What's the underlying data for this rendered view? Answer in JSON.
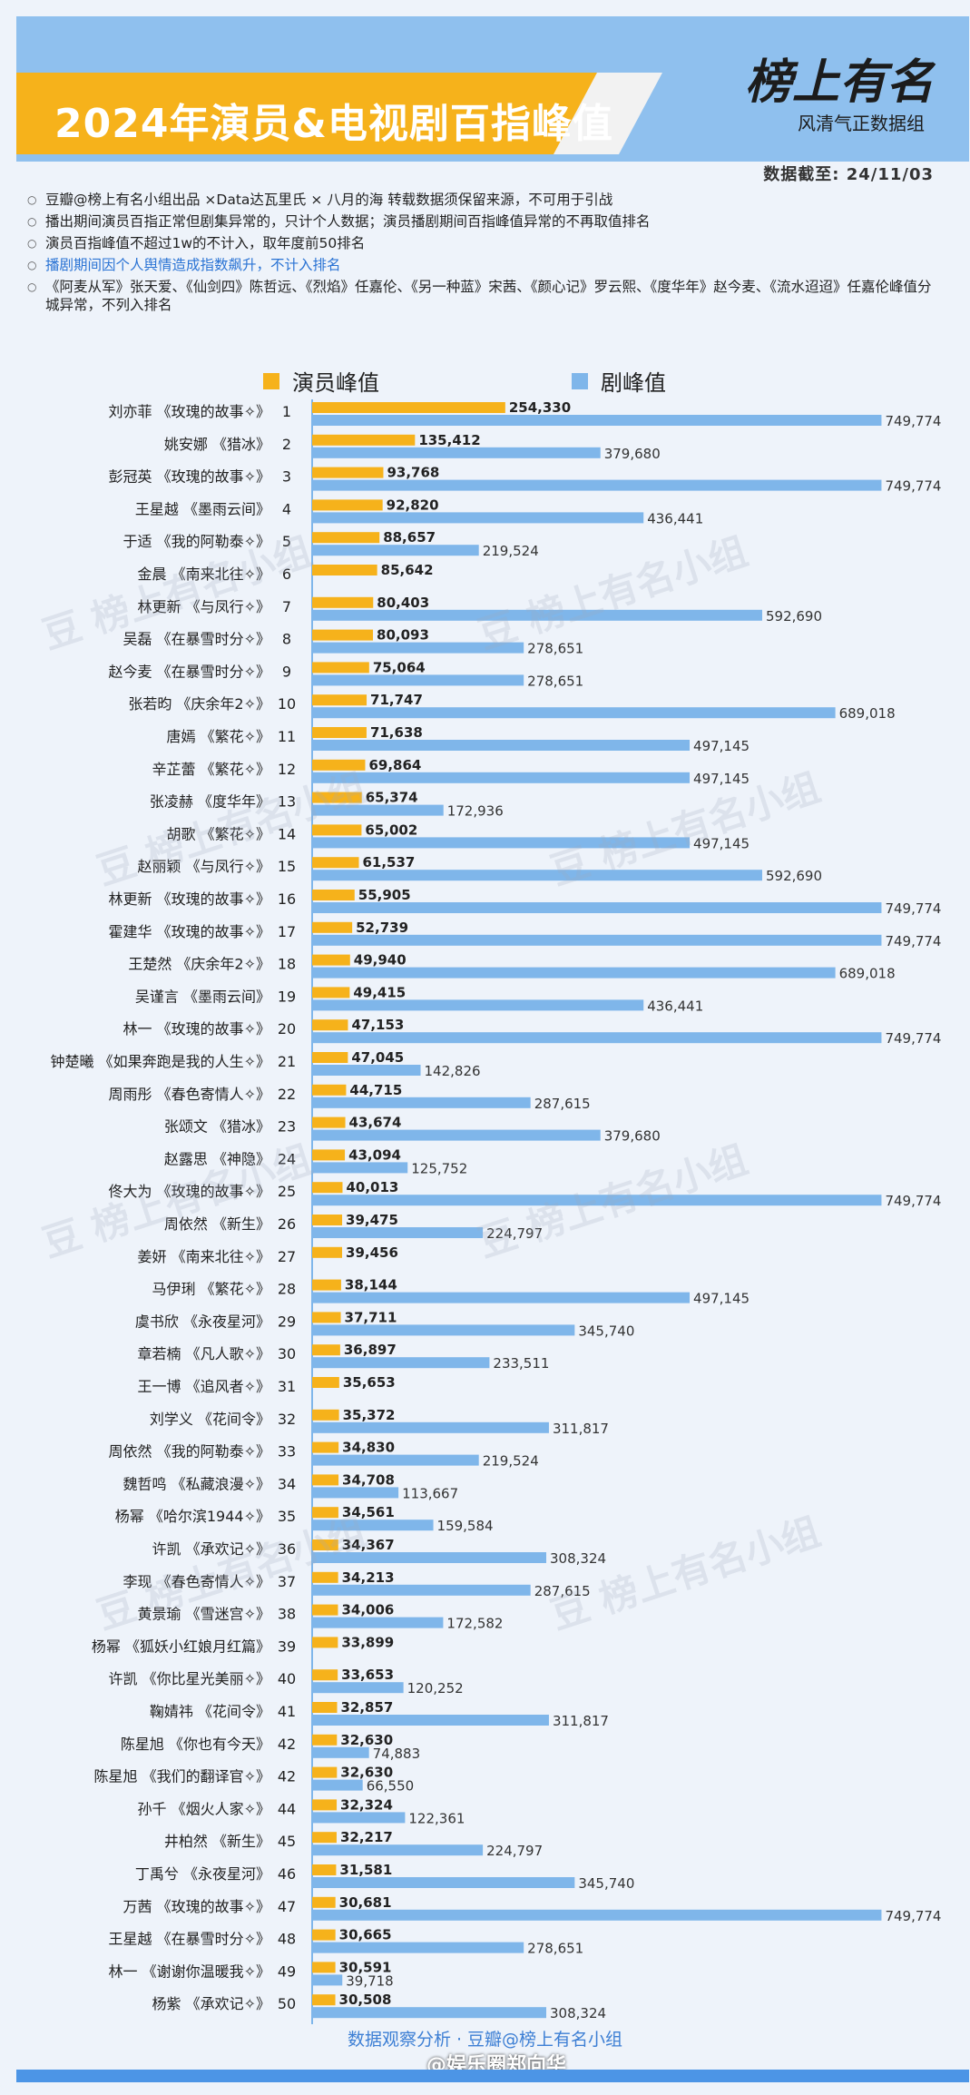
{
  "header": {
    "title": "2024年演员&电视剧百指峰值",
    "logo_text": "榜上有名",
    "logo_sub": "风清气正数据组",
    "date_line": "数据截至: 24/11/03"
  },
  "notes": [
    {
      "text": "豆瓣@榜上有名小组出品 ×Data达瓦里氏 × 八月的海 转载数据须保留来源，不可用于引战",
      "highlight": false
    },
    {
      "text": "播出期间演员百指正常但剧集异常的，只计个人数据；演员播剧期间百指峰值异常的不再取值排名",
      "highlight": false
    },
    {
      "text": "演员百指峰值不超过1w的不计入，取年度前50排名",
      "highlight": false
    },
    {
      "text": "播剧期间因个人舆情造成指数飙升，不计入排名",
      "highlight": true
    },
    {
      "text": "《阿麦从军》张天爱、《仙剑四》陈哲远、《烈焰》任嘉伦、《另一种蓝》宋茜、《颜心记》罗云熙、《度华年》赵今麦、《流水迢迢》任嘉伦峰值分城异常，不列入排名",
      "highlight": false
    }
  ],
  "watermark_text": "豆 榜上有名小组",
  "footer_text": "数据观察分析 · 豆瓣@榜上有名小组",
  "credit_text": "@娱乐圈郑向华",
  "colors": {
    "actor_bar": "#f6b21b",
    "drama_bar": "#7fb6ea",
    "header_blue": "#8fc0ee",
    "header_orange": "#f6b21b"
  },
  "chart_data": {
    "type": "bar",
    "orientation": "horizontal",
    "series": [
      {
        "name": "演员峰值",
        "key": "actor"
      },
      {
        "name": "剧峰值",
        "key": "drama"
      }
    ],
    "xlim": [
      0,
      760000
    ],
    "grid": false,
    "legend_placement": "top",
    "rows": [
      {
        "label": "刘亦菲 《玫瑰的故事✧》",
        "rank": "1",
        "actor": 254330,
        "drama": 749774
      },
      {
        "label": "姚安娜 《猎冰》",
        "rank": "2",
        "actor": 135412,
        "drama": 379680
      },
      {
        "label": "彭冠英 《玫瑰的故事✧》",
        "rank": "3",
        "actor": 93768,
        "drama": 749774
      },
      {
        "label": "王星越 《墨雨云间》",
        "rank": "4",
        "actor": 92820,
        "drama": 436441
      },
      {
        "label": "于适 《我的阿勒泰✧》",
        "rank": "5",
        "actor": 88657,
        "drama": 219524
      },
      {
        "label": "金晨 《南来北往✧》",
        "rank": "6",
        "actor": 85642,
        "drama": null
      },
      {
        "label": "林更新 《与凤行✧》",
        "rank": "7",
        "actor": 80403,
        "drama": 592690
      },
      {
        "label": "吴磊 《在暴雪时分✧》",
        "rank": "8",
        "actor": 80093,
        "drama": 278651
      },
      {
        "label": "赵今麦 《在暴雪时分✧》",
        "rank": "9",
        "actor": 75064,
        "drama": 278651
      },
      {
        "label": "张若昀 《庆余年2✧》",
        "rank": "10",
        "actor": 71747,
        "drama": 689018
      },
      {
        "label": "唐嫣 《繁花✧》",
        "rank": "11",
        "actor": 71638,
        "drama": 497145
      },
      {
        "label": "辛芷蕾 《繁花✧》",
        "rank": "12",
        "actor": 69864,
        "drama": 497145
      },
      {
        "label": "张凌赫 《度华年》",
        "rank": "13",
        "actor": 65374,
        "drama": 172936
      },
      {
        "label": "胡歌 《繁花✧》",
        "rank": "14",
        "actor": 65002,
        "drama": 497145
      },
      {
        "label": "赵丽颖 《与凤行✧》",
        "rank": "15",
        "actor": 61537,
        "drama": 592690
      },
      {
        "label": "林更新 《玫瑰的故事✧》",
        "rank": "16",
        "actor": 55905,
        "drama": 749774
      },
      {
        "label": "霍建华 《玫瑰的故事✧》",
        "rank": "17",
        "actor": 52739,
        "drama": 749774
      },
      {
        "label": "王楚然 《庆余年2✧》",
        "rank": "18",
        "actor": 49940,
        "drama": 689018
      },
      {
        "label": "吴谨言 《墨雨云间》",
        "rank": "19",
        "actor": 49415,
        "drama": 436441
      },
      {
        "label": "林一 《玫瑰的故事✧》",
        "rank": "20",
        "actor": 47153,
        "drama": 749774
      },
      {
        "label": "钟楚曦 《如果奔跑是我的人生✧》",
        "rank": "21",
        "actor": 47045,
        "drama": 142826
      },
      {
        "label": "周雨彤 《春色寄情人✧》",
        "rank": "22",
        "actor": 44715,
        "drama": 287615
      },
      {
        "label": "张颂文 《猎冰》",
        "rank": "23",
        "actor": 43674,
        "drama": 379680
      },
      {
        "label": "赵露思 《神隐》",
        "rank": "24",
        "actor": 43094,
        "drama": 125752
      },
      {
        "label": "佟大为 《玫瑰的故事✧》",
        "rank": "25",
        "actor": 40013,
        "drama": 749774
      },
      {
        "label": "周依然 《新生》",
        "rank": "26",
        "actor": 39475,
        "drama": 224797
      },
      {
        "label": "姜妍 《南来北往✧》",
        "rank": "27",
        "actor": 39456,
        "drama": null
      },
      {
        "label": "马伊琍 《繁花✧》",
        "rank": "28",
        "actor": 38144,
        "drama": 497145
      },
      {
        "label": "虞书欣 《永夜星河》",
        "rank": "29",
        "actor": 37711,
        "drama": 345740
      },
      {
        "label": "章若楠 《凡人歌✧》",
        "rank": "30",
        "actor": 36897,
        "drama": 233511
      },
      {
        "label": "王一博 《追风者✧》",
        "rank": "31",
        "actor": 35653,
        "drama": null
      },
      {
        "label": "刘学义 《花间令》",
        "rank": "32",
        "actor": 35372,
        "drama": 311817
      },
      {
        "label": "周依然 《我的阿勒泰✧》",
        "rank": "33",
        "actor": 34830,
        "drama": 219524
      },
      {
        "label": "魏哲鸣 《私藏浪漫✧》",
        "rank": "34",
        "actor": 34708,
        "drama": 113667
      },
      {
        "label": "杨幂 《哈尔滨1944✧》",
        "rank": "35",
        "actor": 34561,
        "drama": 159584
      },
      {
        "label": "许凯 《承欢记✧》",
        "rank": "36",
        "actor": 34367,
        "drama": 308324
      },
      {
        "label": "李现 《春色寄情人✧》",
        "rank": "37",
        "actor": 34213,
        "drama": 287615
      },
      {
        "label": "黄景瑜 《雪迷宫✧》",
        "rank": "38",
        "actor": 34006,
        "drama": 172582
      },
      {
        "label": "杨幂 《狐妖小红娘月红篇》",
        "rank": "39",
        "actor": 33899,
        "drama": null
      },
      {
        "label": "许凯 《你比星光美丽✧》",
        "rank": "40",
        "actor": 33653,
        "drama": 120252
      },
      {
        "label": "鞠婧祎 《花间令》",
        "rank": "41",
        "actor": 32857,
        "drama": 311817
      },
      {
        "label": "陈星旭 《你也有今天》",
        "rank": "42",
        "actor": 32630,
        "drama": 74883
      },
      {
        "label": "陈星旭 《我们的翻译官✧》",
        "rank": "42",
        "actor": 32630,
        "drama": 66550
      },
      {
        "label": "孙千 《烟火人家✧》",
        "rank": "44",
        "actor": 32324,
        "drama": 122361
      },
      {
        "label": "井柏然 《新生》",
        "rank": "45",
        "actor": 32217,
        "drama": 224797
      },
      {
        "label": "丁禹兮 《永夜星河》",
        "rank": "46",
        "actor": 31581,
        "drama": 345740
      },
      {
        "label": "万茜 《玫瑰的故事✧》",
        "rank": "47",
        "actor": 30681,
        "drama": 749774
      },
      {
        "label": "王星越 《在暴雪时分✧》",
        "rank": "48",
        "actor": 30665,
        "drama": 278651
      },
      {
        "label": "林一 《谢谢你温暖我✧》",
        "rank": "49",
        "actor": 30591,
        "drama": 39718
      },
      {
        "label": "杨紫 《承欢记✧》",
        "rank": "50",
        "actor": 30508,
        "drama": 308324
      }
    ]
  }
}
